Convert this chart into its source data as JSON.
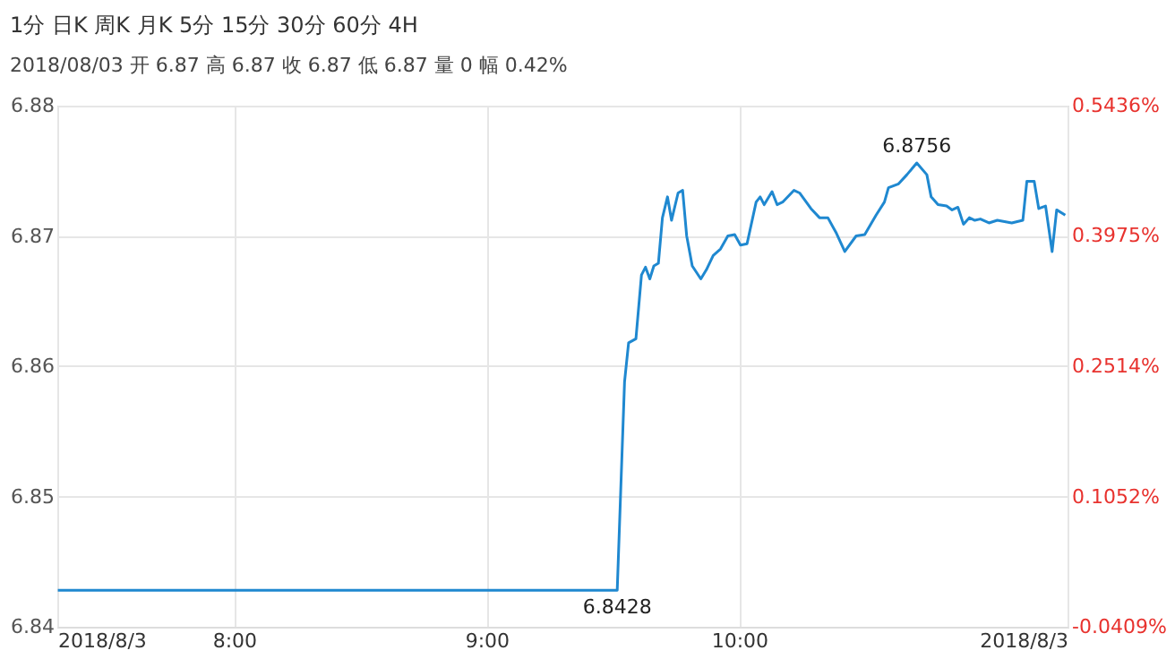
{
  "chart_data": {
    "type": "line",
    "title": "1分",
    "subtitle": "2018/08/03 开 6.87 高 6.87 收 6.87 低 6.87 量 0 幅 0.42%",
    "annotations": [
      "日K",
      "周K",
      "月K",
      "5分",
      "15分",
      "30分",
      "60分",
      "4H",
      {
        "text": "6.8756",
        "x": 10.703,
        "y": 6.8756
      },
      {
        "text": "6.8428",
        "x": 9.517,
        "y": 6.8428
      }
    ],
    "series": [
      {
        "color": "#1f88d0",
        "x": [
          7.302,
          9.517,
          9.53,
          9.546,
          9.562,
          9.591,
          9.613,
          9.629,
          9.646,
          9.662,
          9.68,
          9.696,
          9.716,
          9.732,
          9.758,
          9.776,
          9.792,
          9.814,
          9.848,
          9.87,
          9.897,
          9.926,
          9.955,
          9.982,
          10.005,
          10.031,
          10.067,
          10.083,
          10.099,
          10.13,
          10.15,
          10.172,
          10.217,
          10.239,
          10.284,
          10.318,
          10.351,
          10.385,
          10.418,
          10.463,
          10.497,
          10.542,
          10.575,
          10.591,
          10.631,
          10.664,
          10.703,
          10.743,
          10.76,
          10.787,
          10.821,
          10.843,
          10.866,
          10.888,
          10.911,
          10.933,
          10.955,
          10.989,
          11.022,
          11.079,
          11.123,
          11.139,
          11.168,
          11.186,
          11.213,
          11.239,
          11.257,
          11.291
        ],
        "values": [
          6.8428,
          6.8428,
          6.85,
          6.8588,
          6.8618,
          6.8621,
          6.867,
          6.8676,
          6.8667,
          6.8677,
          6.8679,
          6.8714,
          6.873,
          6.8712,
          6.8733,
          6.8735,
          6.87,
          6.8677,
          6.8667,
          6.8674,
          6.8685,
          6.869,
          6.87,
          6.8701,
          6.8693,
          6.8694,
          6.8726,
          6.873,
          6.8724,
          6.8734,
          6.8724,
          6.8726,
          6.8735,
          6.8733,
          6.8721,
          6.8714,
          6.8714,
          6.8702,
          6.8688,
          6.87,
          6.8701,
          6.8716,
          6.8726,
          6.8737,
          6.874,
          6.8747,
          6.8756,
          6.8747,
          6.873,
          6.8724,
          6.8723,
          6.872,
          6.8722,
          6.8709,
          6.8714,
          6.8712,
          6.8713,
          6.871,
          6.8712,
          6.871,
          6.8712,
          6.8742,
          6.8742,
          6.8721,
          6.8723,
          6.8688,
          6.872,
          6.8716
        ]
      }
    ],
    "xlim": [
      7.3,
      11.3
    ],
    "xticks": [
      {
        "value": 7.3,
        "label": "2018/8/3"
      },
      {
        "value": 8,
        "label": "8:00"
      },
      {
        "value": 9,
        "label": "9:00"
      },
      {
        "value": 10,
        "label": "10:00"
      },
      {
        "value": 11.3,
        "label": "2018/8/3"
      }
    ],
    "ylim": [
      6.84,
      6.88
    ],
    "yticks": [
      6.84,
      6.85,
      6.86,
      6.87,
      6.88
    ],
    "y2lim": [
      -0.0409,
      0.5436
    ],
    "y2ticks": [
      {
        "value": -0.0409,
        "label": "-0.0409%"
      },
      {
        "value": 0.1052,
        "label": "0.1052%"
      },
      {
        "value": 0.2514,
        "label": "0.2514%"
      },
      {
        "value": 0.3975,
        "label": "0.3975%"
      },
      {
        "value": 0.5436,
        "label": "0.5436%"
      }
    ],
    "grid": true
  }
}
